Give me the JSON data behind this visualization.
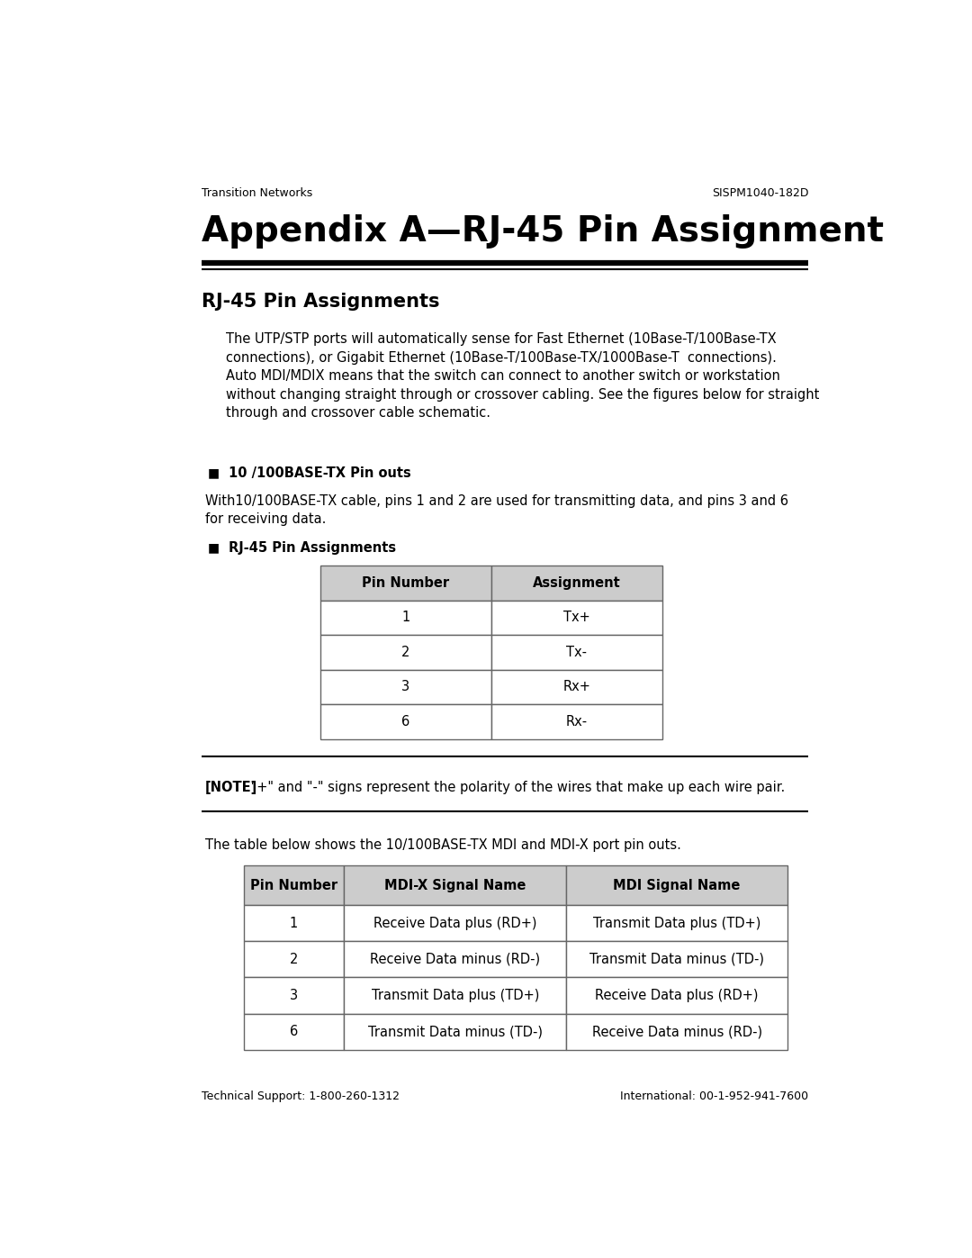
{
  "header_left": "Transition Networks",
  "header_right": "SISPM1040-182D",
  "main_title": "Appendix A—RJ-45 Pin Assignment",
  "section1_title": "RJ-45 Pin Assignments",
  "body_text_lines": [
    "The UTP/STP ports will automatically sense for Fast Ethernet (10Base-T/100Base-TX",
    "connections), or Gigabit Ethernet (10Base-T/100Base-TX/1000Base-T  connections).",
    "Auto MDI/MDIX means that the switch can connect to another switch or workstation",
    "without changing straight through or crossover cabling. See the figures below for straight",
    "through and crossover cable schematic."
  ],
  "bullet1_title": "10 /100BASE-TX Pin outs",
  "bullet1_text_lines": [
    "With10/100BASE-TX cable, pins 1 and 2 are used for transmitting data, and pins 3 and 6",
    "for receiving data."
  ],
  "bullet2_title": "RJ-45 Pin Assignments",
  "table1_headers": [
    "Pin Number",
    "Assignment"
  ],
  "table1_data": [
    [
      "1",
      "Tx+"
    ],
    [
      "2",
      "Tx-"
    ],
    [
      "3",
      "Rx+"
    ],
    [
      "6",
      "Rx-"
    ]
  ],
  "note_bold": "[NOTE]",
  "note_rest": " \"+\" and \"-\" signs represent the polarity of the wires that make up each wire pair.",
  "intro_text2": "The table below shows the 10/100BASE-TX MDI and MDI-X port pin outs.",
  "table2_headers": [
    "Pin Number",
    "MDI-X Signal Name",
    "MDI Signal Name"
  ],
  "table2_data": [
    [
      "1",
      "Receive Data plus (RD+)",
      "Transmit Data plus (TD+)"
    ],
    [
      "2",
      "Receive Data minus (RD-)",
      "Transmit Data minus (TD-)"
    ],
    [
      "3",
      "Transmit Data plus (TD+)",
      "Receive Data plus (RD+)"
    ],
    [
      "6",
      "Transmit Data minus (TD-)",
      "Receive Data minus (RD-)"
    ]
  ],
  "footer_left": "Technical Support: 1-800-260-1312",
  "footer_right": "International: 00-1-952-941-7600",
  "bg_color": "#ffffff",
  "text_color": "#000000",
  "header_bg_color": "#cccccc",
  "table_border_color": "#666666"
}
